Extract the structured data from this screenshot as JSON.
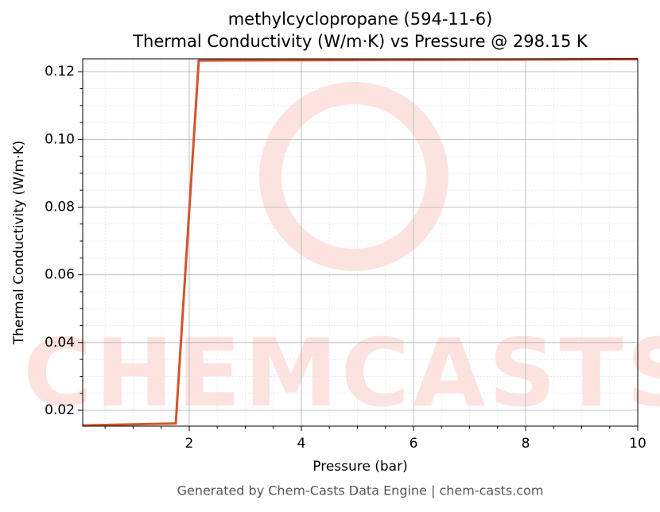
{
  "chart_data": {
    "type": "line",
    "title": "methylcyclopropane (594-11-6)",
    "subtitle": "Thermal Conductivity (W/m·K) vs Pressure @ 298.15 K",
    "x_label": "Pressure (bar)",
    "y_label": "Thermal Conductivity (W/m·K)",
    "watermark": "CHEMCASTS",
    "footer": "Generated by Chem-Casts Data Engine | chem-casts.com",
    "x": [
      0.1,
      1.76,
      2.17,
      10
    ],
    "series": [
      {
        "name": "Thermal Conductivity",
        "color": "#d4532b",
        "values": [
          0.0155,
          0.0161,
          0.1233,
          0.1237
        ]
      }
    ],
    "xlim": [
      0.1,
      10
    ],
    "ylim": [
      0.0153,
      0.1238
    ],
    "xticks": [
      2,
      4,
      6,
      8,
      10
    ],
    "yticks": [
      0.02,
      0.04,
      0.06,
      0.08,
      {
        "value": 0.1,
        "label": "0.10"
      },
      0.12
    ],
    "xticks_minor": [
      0.5,
      1,
      1.5,
      2.5,
      3,
      3.5,
      4.5,
      5,
      5.5,
      6.5,
      7,
      7.5,
      8.5,
      9,
      9.5
    ],
    "yticks_minor": [
      0.025,
      0.03,
      0.035,
      0.045,
      0.05,
      0.055,
      0.065,
      0.07,
      0.075,
      0.085,
      0.09,
      0.095,
      0.105,
      0.11,
      0.115
    ],
    "grid": true
  }
}
